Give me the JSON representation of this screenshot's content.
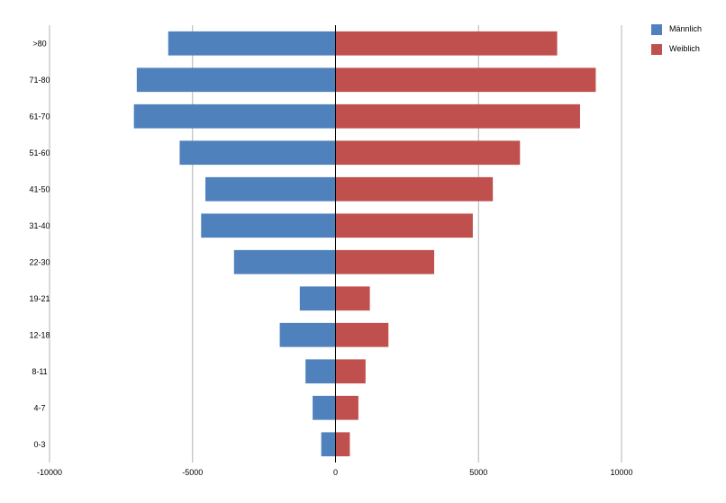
{
  "chart_data": {
    "type": "bar",
    "orientation": "horizontal",
    "title": "",
    "xlabel": "",
    "ylabel": "",
    "categories": [
      "0-3",
      "4-7",
      "8-11",
      "12-18",
      "19-21",
      "22-30",
      "31-40",
      "41-50",
      "51-60",
      "61-70",
      "71-80",
      ">80"
    ],
    "series": [
      {
        "name": "Männlich",
        "color": "#4f81bd",
        "values": [
          -500,
          -800,
          -1050,
          -1950,
          -1250,
          -3550,
          -4700,
          -4550,
          -5450,
          -7050,
          -6950,
          -5850
        ]
      },
      {
        "name": "Weiblich",
        "color": "#c0504d",
        "values": [
          500,
          800,
          1050,
          1850,
          1200,
          3450,
          4800,
          5500,
          6450,
          8550,
          9100,
          7750
        ]
      }
    ],
    "xlim": [
      -10000,
      10000
    ],
    "xticks": [
      "-10000",
      "-5000",
      "0",
      "5000",
      "10000"
    ],
    "grid": "vertical",
    "legend_position": "top-right"
  }
}
